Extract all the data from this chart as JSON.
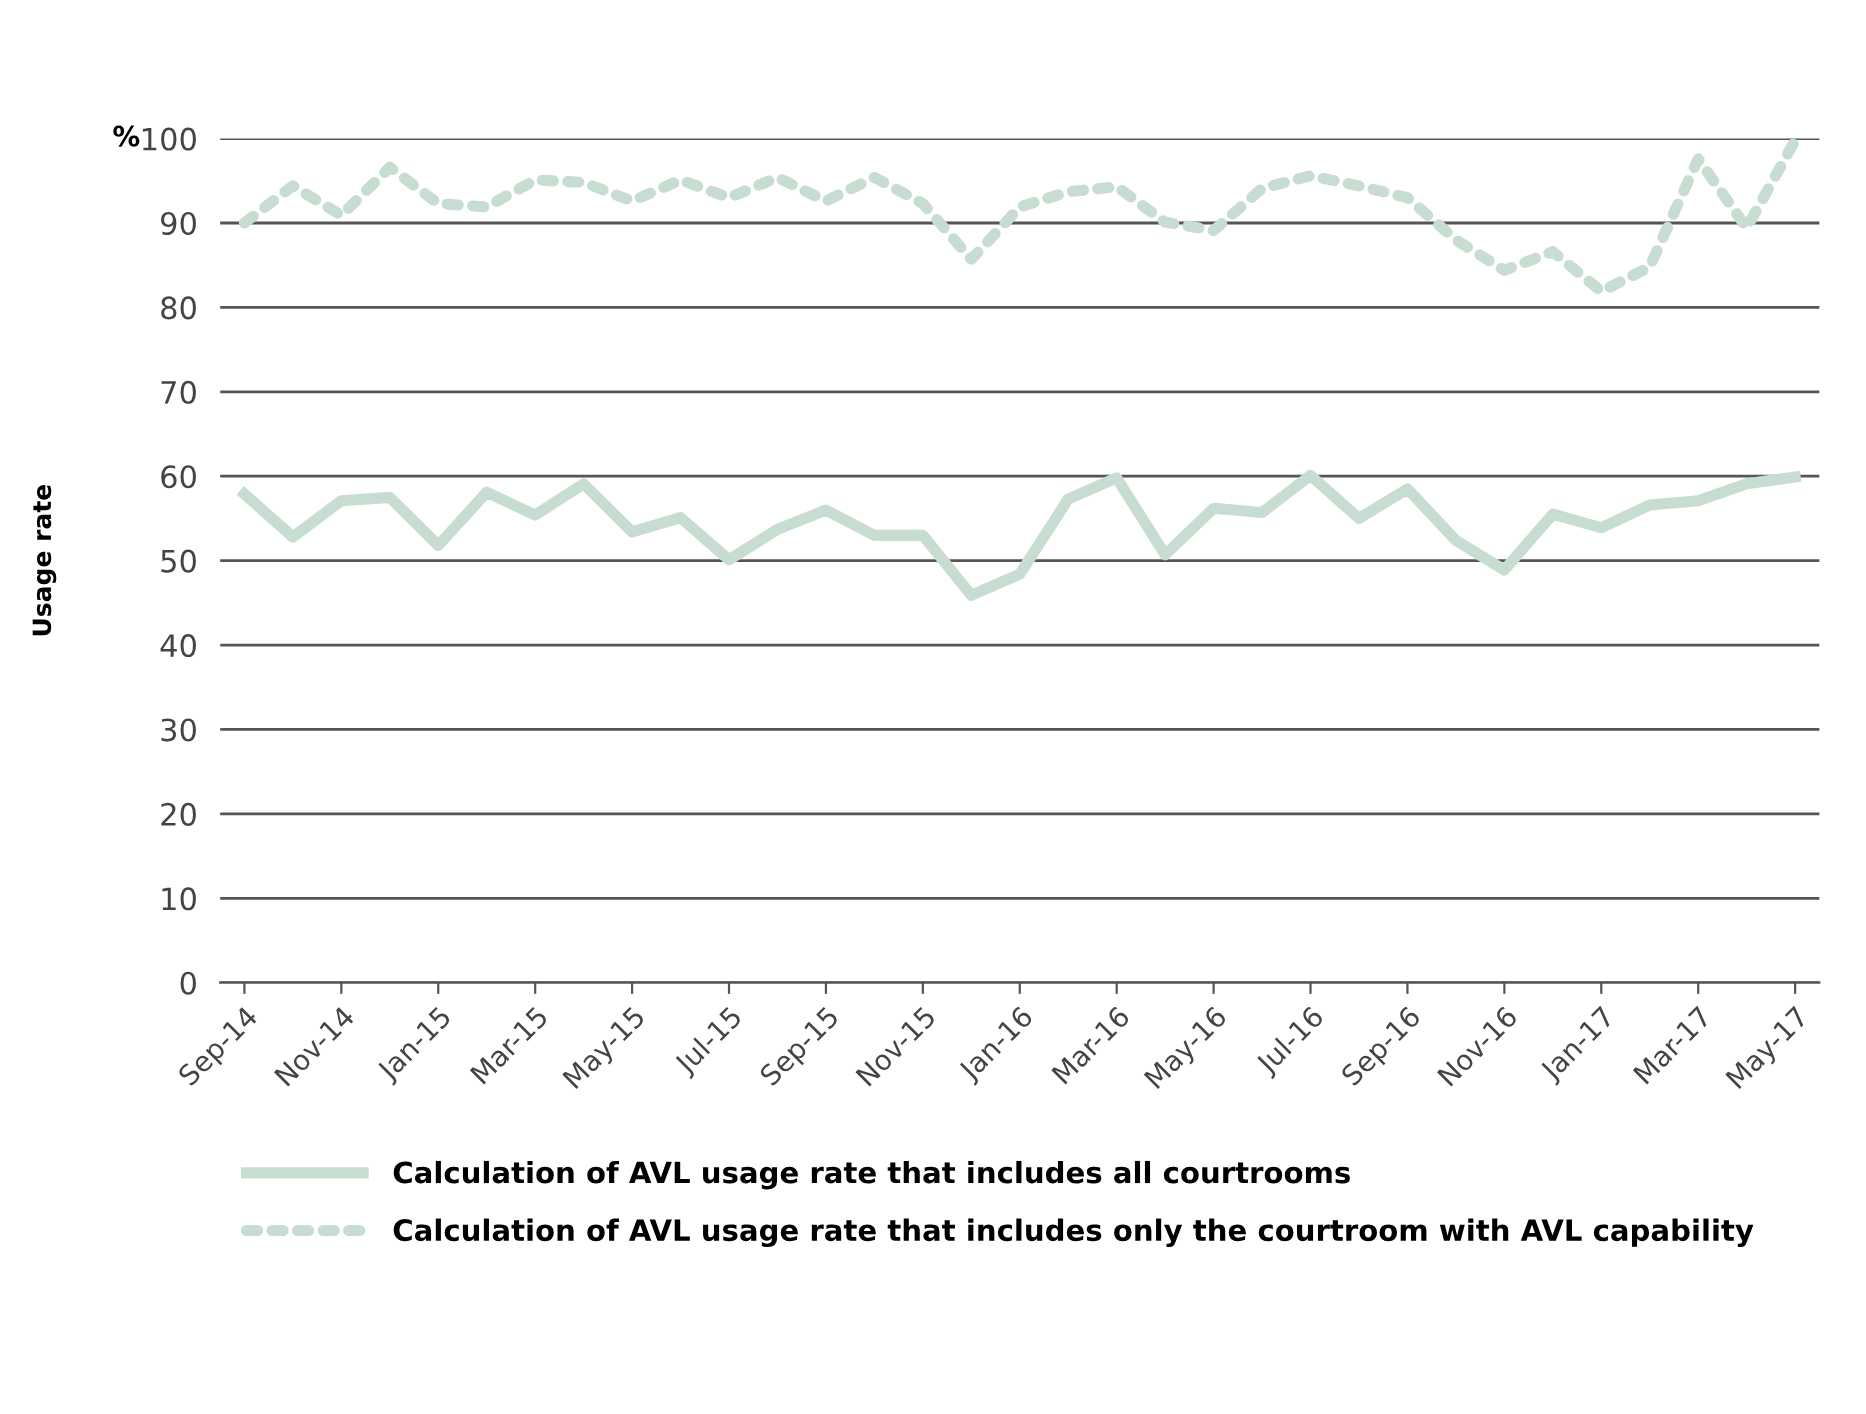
{
  "chart_data": {
    "type": "line",
    "ylabel": "Usage rate",
    "annotations": [
      "%"
    ],
    "categories": [
      "Sep-14",
      null,
      "Nov-14",
      null,
      "Jan-15",
      null,
      "Mar-15",
      null,
      "May-15",
      null,
      "Jul-15",
      null,
      "Sep-15",
      null,
      "Nov-15",
      null,
      "Jan-16",
      null,
      "Mar-16",
      null,
      "May-16",
      null,
      "Jul-16",
      null,
      "Sep-16",
      null,
      "Nov-16",
      null,
      "Jan-17",
      null,
      "Mar-17",
      null,
      "May-17"
    ],
    "series": [
      {
        "name": "Calculation of AVL usage rate that includes all courtrooms",
        "color": "#c8ddd2",
        "line_style": "solid",
        "values": [
          57.9,
          52.8,
          57.1,
          57.5,
          51.8,
          58.1,
          55.4,
          59.1,
          53.4,
          55.1,
          50.1,
          53.7,
          56.0,
          53.0,
          53.0,
          45.9,
          48.4,
          57.3,
          59.8,
          50.7,
          56.2,
          55.7,
          60.1,
          55.0,
          58.5,
          52.4,
          48.9,
          55.5,
          53.9,
          56.6,
          57.1,
          59.1,
          59.9
        ]
      },
      {
        "name": "Calculation of AVL usage rate that includes only the courtroom with AVL capability",
        "color": "#c8ddd2",
        "line_style": "dotted",
        "values": [
          90.0,
          94.4,
          90.9,
          96.6,
          92.3,
          91.9,
          95.1,
          94.8,
          92.6,
          95.1,
          93.0,
          95.4,
          92.6,
          95.4,
          92.3,
          85.7,
          91.9,
          93.7,
          94.3,
          90.1,
          89.1,
          94.1,
          95.6,
          94.4,
          93.0,
          88.0,
          84.4,
          86.6,
          81.9,
          84.8,
          97.6,
          89.4,
          99.8
        ]
      }
    ],
    "ylim": [
      0,
      100
    ],
    "yticks": [
      0,
      10,
      20,
      30,
      40,
      50,
      60,
      70,
      80,
      90,
      100
    ],
    "grid": "y",
    "legend": "bottom",
    "marker": "none"
  }
}
